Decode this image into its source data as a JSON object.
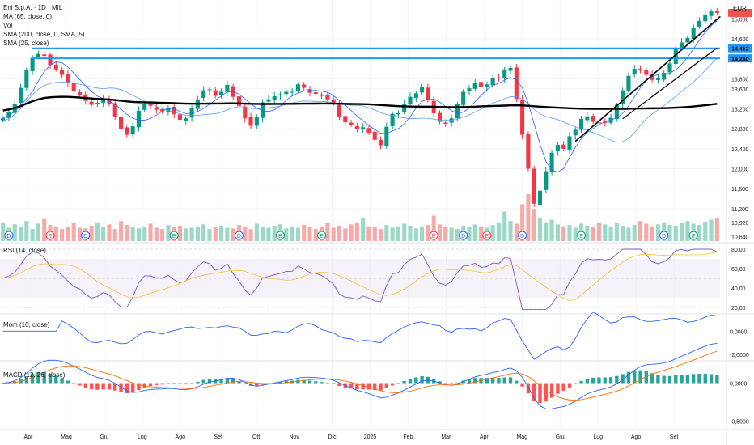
{
  "chart_data": {
    "type": "candlestick",
    "symbol_title": "Eni S.p.A. · 1D · MIL",
    "currency": "EUR",
    "indicators": [
      "MA (65, close, 0)",
      "Vol",
      "SMA (200, close, 0, SMA, 5)",
      "SMA (25, close)"
    ],
    "price_axis": {
      "ticks": [
        "15,000",
        "14,600",
        "14,200",
        "13,800",
        "13,600",
        "13,200",
        "12,800",
        "12,400",
        "12,000",
        "11,600",
        "11,200",
        "10,920",
        "10,640"
      ],
      "tick_values": [
        15000,
        14600,
        14200,
        13800,
        13600,
        13200,
        12800,
        12400,
        12000,
        11600,
        11200,
        10920,
        10640
      ],
      "range": [
        10550,
        15250
      ]
    },
    "horizontal_levels": [
      {
        "label": "14,412",
        "value": 14412,
        "color": "#2196f3"
      },
      {
        "label": "14,210",
        "value": 14210,
        "color": "#2196f3"
      }
    ],
    "last_price_color": "#ef5350",
    "x_labels": [
      "Apr",
      "Mag",
      "Giu",
      "Lug",
      "Ago",
      "Set",
      "Ott",
      "Nov",
      "Dic",
      "2025",
      "Feb",
      "Mar",
      "Apr",
      "Mag",
      "Giu",
      "Lug",
      "Ago",
      "Set"
    ],
    "price_series": [
      13010,
      13130,
      13300,
      13620,
      13980,
      14220,
      14300,
      14260,
      14080,
      13990,
      13880,
      13720,
      13560,
      13480,
      13360,
      13280,
      13320,
      13410,
      13300,
      13040,
      12800,
      12680,
      12850,
      13160,
      13300,
      13260,
      13180,
      13150,
      13220,
      13090,
      12980,
      13010,
      13210,
      13390,
      13570,
      13590,
      13460,
      13540,
      13680,
      13440,
      13260,
      13010,
      12860,
      13040,
      13330,
      13390,
      13450,
      13490,
      13540,
      13540,
      13690,
      13620,
      13520,
      13500,
      13460,
      13390,
      13300,
      13040,
      12930,
      12880,
      12790,
      12830,
      12720,
      12580,
      12470,
      12840,
      13100,
      13110,
      13300,
      13440,
      13510,
      13630,
      13390,
      13110,
      12940,
      12900,
      13010,
      13300,
      13540,
      13610,
      13710,
      13640,
      13690,
      13810,
      13810,
      13990,
      14020,
      13400,
      12680,
      12000,
      11300,
      11560,
      11950,
      12320,
      12480,
      12400,
      12650,
      12780,
      13000,
      13050,
      12940,
      12920,
      12920,
      13020,
      13280,
      13570,
      13860,
      14000,
      13990,
      13880,
      13780,
      13810,
      13920,
      14110,
      14390,
      14530,
      14620,
      14830,
      14960,
      15090,
      15150,
      15120
    ],
    "volume_series": [
      28,
      20,
      25,
      22,
      30,
      18,
      26,
      33,
      24,
      22,
      18,
      21,
      27,
      20,
      19,
      23,
      28,
      22,
      25,
      18,
      30,
      24,
      21,
      19,
      22,
      26,
      20,
      18,
      24,
      21,
      23,
      19,
      20,
      22,
      25,
      18,
      21,
      23,
      20,
      19,
      24,
      22,
      18,
      26,
      21,
      20,
      23,
      25,
      19,
      22,
      20,
      24,
      21,
      18,
      22,
      27,
      20,
      23,
      19,
      25,
      28,
      35,
      22,
      21,
      18,
      24,
      20,
      22,
      26,
      23,
      19,
      21,
      24,
      38,
      25,
      22,
      20,
      18,
      23,
      21,
      25,
      22,
      20,
      24,
      28,
      44,
      30,
      26,
      55,
      70,
      48,
      35,
      28,
      32,
      25,
      22,
      24,
      20,
      26,
      23,
      21,
      28,
      25,
      22,
      27,
      23,
      20,
      24,
      30,
      26,
      22,
      25,
      28,
      24,
      23,
      27,
      30,
      26,
      24,
      29,
      32,
      35
    ],
    "rsi": {
      "title": "RSI (14, close)",
      "ticks": [
        "80,00",
        "60,00",
        "40,00",
        "20,00"
      ],
      "tick_values": [
        80,
        60,
        40,
        20
      ],
      "range": [
        15,
        85
      ],
      "band": [
        30,
        70
      ]
    },
    "mom": {
      "title": "Mom (10, close)",
      "ticks": [
        "0,0000",
        "-2,0000"
      ],
      "tick_values": [
        0,
        -2
      ],
      "range": [
        -2.4,
        1.2
      ]
    },
    "macd": {
      "title": "MACD (12, 26, close)",
      "ticks": [
        "0,0000",
        "-0,5000"
      ],
      "tick_values": [
        0,
        -0.5
      ],
      "range": [
        -0.6,
        0.25
      ]
    },
    "event_markers": [
      {
        "label": "D",
        "color": "#2962ff",
        "xi": 1
      },
      {
        "label": "E",
        "color": "#f23645",
        "xi": 12
      },
      {
        "label": "D",
        "color": "#2962ff",
        "xi": 20
      },
      {
        "label": "E",
        "color": "#089981",
        "xi": 41
      },
      {
        "label": "D",
        "color": "#2962ff",
        "xi": 58
      },
      {
        "label": "E",
        "color": "#089981",
        "xi": 68
      },
      {
        "label": "E",
        "color": "#089981",
        "xi": 77
      },
      {
        "label": "E",
        "color": "#f23645",
        "xi": 104
      },
      {
        "label": "D",
        "color": "#2962ff",
        "xi": 112
      },
      {
        "label": "E",
        "color": "#f23645",
        "xi": 117
      },
      {
        "label": "D",
        "color": "#2962ff",
        "xi": 126
      },
      {
        "label": "E",
        "color": "#089981",
        "xi": 140
      },
      {
        "label": "D",
        "color": "#2962ff",
        "xi": 160
      },
      {
        "label": "E",
        "color": "#089981",
        "xi": 168
      }
    ]
  }
}
